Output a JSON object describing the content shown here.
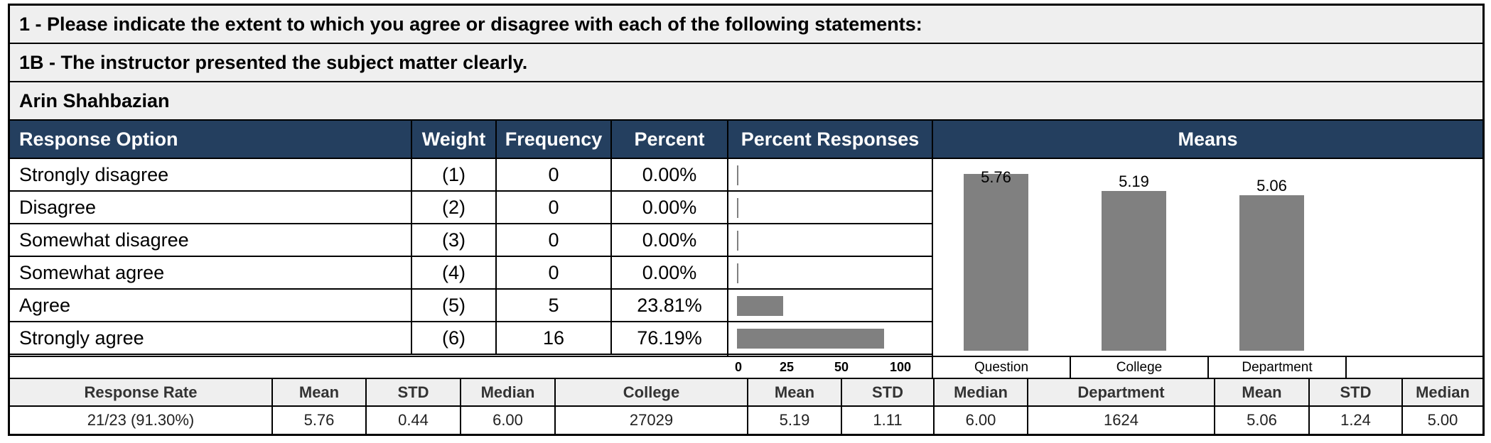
{
  "headers": {
    "question_group": "1 - Please indicate the extent to which you agree or disagree with each of the following statements:",
    "question": "1B - The instructor presented the subject matter clearly.",
    "instructor": "Arin Shahbazian"
  },
  "table": {
    "columns": [
      "Response Option",
      "Weight",
      "Frequency",
      "Percent",
      "Percent Responses",
      "Means"
    ],
    "rows": [
      {
        "option": "Strongly disagree",
        "weight": "(1)",
        "frequency": "0",
        "percent": "0.00%"
      },
      {
        "option": "Disagree",
        "weight": "(2)",
        "frequency": "0",
        "percent": "0.00%"
      },
      {
        "option": "Somewhat disagree",
        "weight": "(3)",
        "frequency": "0",
        "percent": "0.00%"
      },
      {
        "option": "Somewhat agree",
        "weight": "(4)",
        "frequency": "0",
        "percent": "0.00%"
      },
      {
        "option": "Agree",
        "weight": "(5)",
        "frequency": "5",
        "percent": "23.81%"
      },
      {
        "option": "Strongly agree",
        "weight": "(6)",
        "frequency": "16",
        "percent": "76.19%"
      }
    ]
  },
  "chart_data": [
    {
      "type": "bar",
      "orientation": "horizontal",
      "categories": [
        "Strongly disagree",
        "Disagree",
        "Somewhat disagree",
        "Somewhat agree",
        "Agree",
        "Strongly agree"
      ],
      "values": [
        0,
        0,
        0,
        0,
        23.81,
        76.19
      ],
      "xlim": [
        0,
        100
      ],
      "xticks": [
        "0",
        "25",
        "50",
        "100"
      ],
      "color": "#808080"
    },
    {
      "type": "bar",
      "categories": [
        "Question",
        "College",
        "Department"
      ],
      "values": [
        5.76,
        5.19,
        5.06
      ],
      "value_labels": [
        "5.76",
        "5.19",
        "5.06"
      ],
      "color": "#808080"
    }
  ],
  "stats": {
    "headers": [
      "Response Rate",
      "Mean",
      "STD",
      "Median",
      "College",
      "Mean",
      "STD",
      "Median",
      "Department",
      "Mean",
      "STD",
      "Median"
    ],
    "values": [
      "21/23 (91.30%)",
      "5.76",
      "0.44",
      "6.00",
      "27029",
      "5.19",
      "1.11",
      "6.00",
      "1624",
      "5.06",
      "1.24",
      "5.00"
    ]
  },
  "colors": {
    "header_bg": "#243f5f",
    "section_bg": "#efefef",
    "bar": "#808080"
  }
}
